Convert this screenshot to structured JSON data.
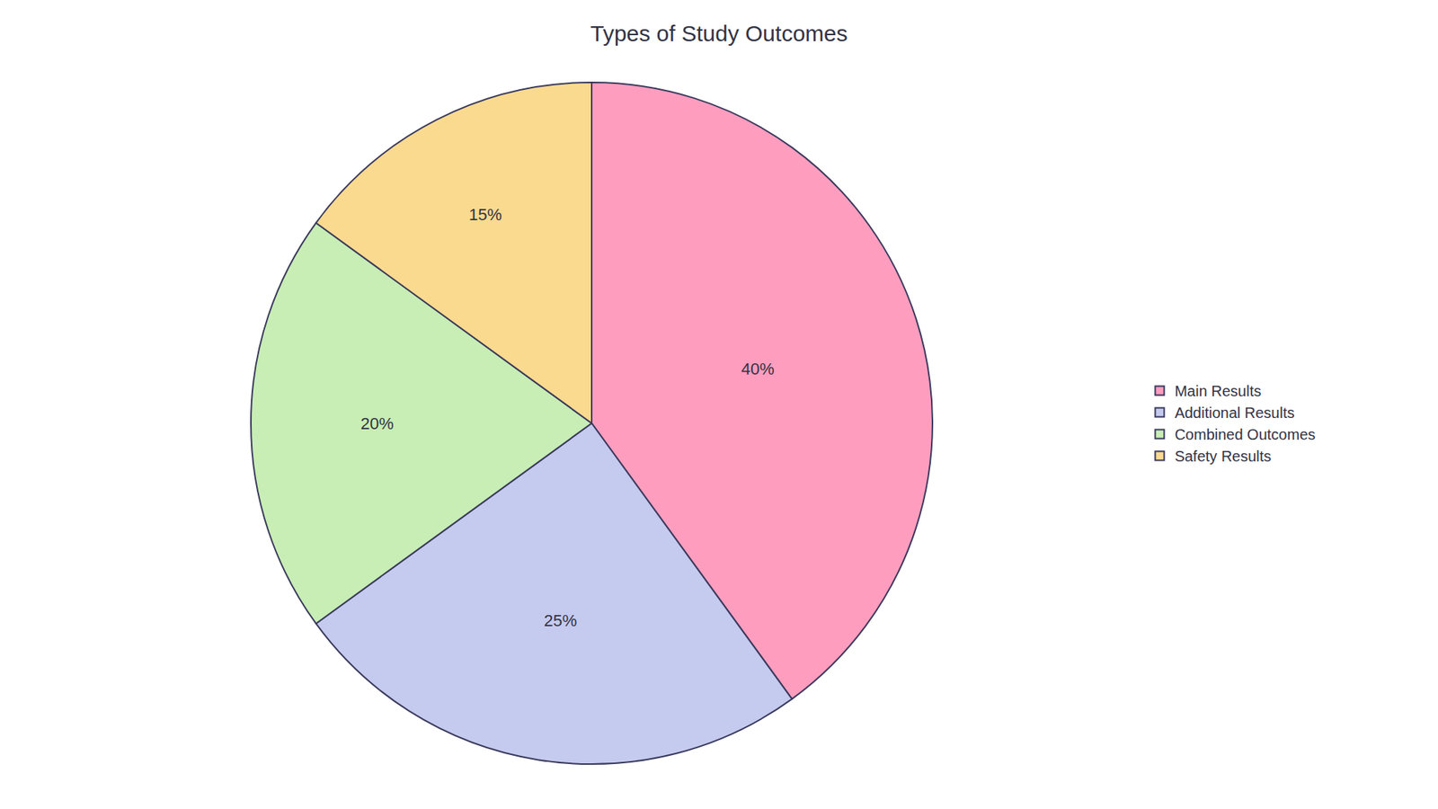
{
  "chart_data": {
    "type": "pie",
    "title": "Types of Study Outcomes",
    "categories": [
      "Main Results",
      "Additional Results",
      "Combined Outcomes",
      "Safety Results"
    ],
    "values": [
      40,
      25,
      20,
      15
    ],
    "value_labels": [
      "40%",
      "25%",
      "20%",
      "15%"
    ],
    "colors": [
      "#FF9DBF",
      "#C5CAEF",
      "#C8EDB5",
      "#FADA8E"
    ],
    "data_labels": true,
    "legend": "right"
  }
}
